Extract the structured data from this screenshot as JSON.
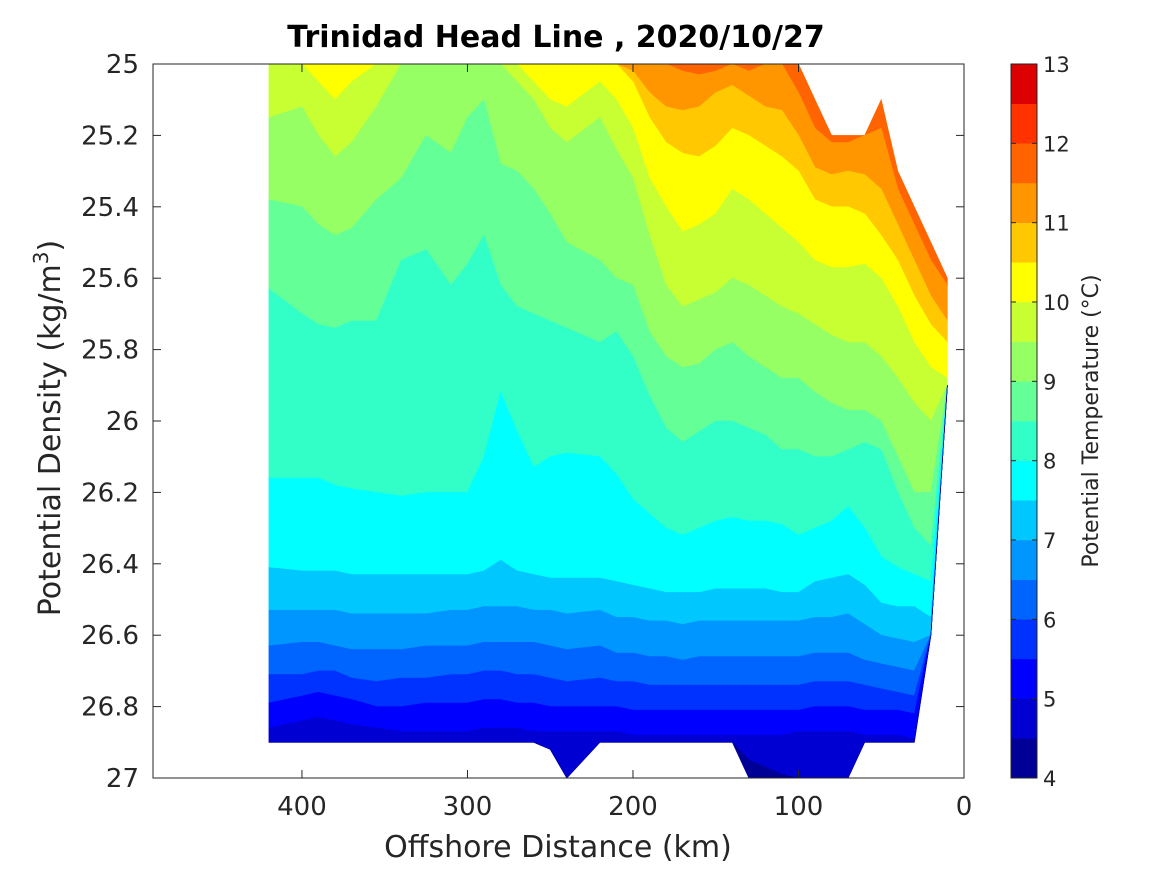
{
  "chart_data": {
    "type": "filled_contour",
    "title": "Trinidad Head Line , 2020/10/27",
    "xlabel": "Offshore Distance (km)",
    "ylabel": "Potential Density (kg/m³)",
    "ylabel_base": "Potential Density (kg/m",
    "ylabel_sup": "3",
    "ylabel_end": ")",
    "colorbar_label": "Potential Temperature (°C)",
    "x_axis": {
      "range": [
        490,
        0
      ],
      "reversed": true,
      "ticks": [
        400,
        300,
        200,
        100,
        0
      ],
      "tick_labels": [
        "400",
        "300",
        "200",
        "100",
        "0"
      ]
    },
    "y_axis": {
      "range": [
        25,
        27
      ],
      "reversed": true,
      "ticks": [
        25,
        25.2,
        25.4,
        25.6,
        25.8,
        26,
        26.2,
        26.4,
        26.6,
        26.8,
        27
      ],
      "tick_labels": [
        "25",
        "25.2",
        "25.4",
        "25.6",
        "25.8",
        "26",
        "26.2",
        "26.4",
        "26.6",
        "26.8",
        "27"
      ]
    },
    "colorbar": {
      "min": 4,
      "max": 13,
      "step": 0.5,
      "tick_values": [
        4,
        5,
        6,
        7,
        8,
        9,
        10,
        11,
        12,
        13
      ],
      "tick_labels": [
        "4",
        "5",
        "6",
        "7",
        "8",
        "9",
        "10",
        "11",
        "12",
        "13"
      ],
      "colors": [
        "#000096",
        "#0000d2",
        "#0000ff",
        "#0032ff",
        "#0064ff",
        "#0096ff",
        "#00c8ff",
        "#00ffff",
        "#32ffc8",
        "#64ff96",
        "#96ff64",
        "#c8ff32",
        "#ffff00",
        "#ffc800",
        "#ff9600",
        "#ff6400",
        "#ff3200",
        "#dc0000"
      ]
    },
    "grid": false,
    "distance_km": [
      420,
      400,
      390,
      380,
      370,
      355,
      340,
      325,
      310,
      300,
      290,
      280,
      270,
      260,
      250,
      240,
      220,
      210,
      200,
      190,
      180,
      170,
      160,
      150,
      140,
      130,
      120,
      110,
      100,
      90,
      80,
      70,
      60,
      50,
      40,
      30,
      20,
      10
    ],
    "bottom_density": [
      26.9,
      26.9,
      26.9,
      26.9,
      26.9,
      26.9,
      26.9,
      26.9,
      26.9,
      26.9,
      26.9,
      26.9,
      26.9,
      26.9,
      26.92,
      27.0,
      26.9,
      26.9,
      26.9,
      26.9,
      26.9,
      26.9,
      26.9,
      26.9,
      26.9,
      27.0,
      27.0,
      27.0,
      27.0,
      27.0,
      27.0,
      27.0,
      26.9,
      26.9,
      26.9,
      26.9,
      26.6,
      25.9
    ],
    "top_density": [
      25.0,
      25.0,
      25.0,
      25.0,
      25.0,
      25.0,
      25.0,
      25.0,
      25.0,
      25.0,
      25.0,
      25.0,
      25.0,
      25.0,
      25.0,
      25.0,
      25.0,
      25.0,
      25.0,
      25.0,
      25.0,
      25.0,
      25.0,
      25.0,
      25.0,
      25.0,
      25.0,
      25.0,
      25.0,
      25.1,
      25.2,
      25.2,
      25.2,
      25.1,
      25.3,
      25.4,
      25.5,
      25.6
    ],
    "isopycnal_depth_of_isotherms": [
      {
        "temperature": 11.5,
        "density": [
          25.0,
          25.0,
          25.0,
          25.0,
          25.0,
          25.0,
          25.0,
          25.0,
          25.0,
          25.0,
          25.0,
          25.0,
          25.0,
          25.0,
          25.0,
          25.0,
          25.0,
          25.0,
          25.0,
          25.0,
          25.0,
          25.02,
          25.03,
          25.02,
          25.0,
          25.02,
          25.0,
          25.0,
          25.08,
          25.18,
          25.22,
          25.22,
          25.15,
          25.18,
          25.35,
          25.45,
          25.55,
          25.62
        ]
      },
      {
        "temperature": 11.0,
        "density": [
          25.0,
          25.0,
          25.0,
          25.0,
          25.0,
          25.0,
          25.0,
          25.0,
          25.0,
          25.0,
          25.0,
          25.0,
          25.0,
          25.0,
          25.0,
          25.0,
          25.0,
          25.0,
          25.02,
          25.08,
          25.12,
          25.13,
          25.12,
          25.08,
          25.06,
          25.09,
          25.12,
          25.13,
          25.2,
          25.29,
          25.31,
          25.3,
          25.31,
          25.35,
          25.45,
          25.55,
          25.65,
          25.72
        ]
      },
      {
        "temperature": 10.5,
        "density": [
          25.0,
          25.0,
          25.0,
          25.0,
          25.0,
          25.0,
          25.0,
          25.0,
          25.0,
          25.0,
          25.0,
          25.0,
          25.0,
          25.0,
          25.0,
          25.0,
          25.0,
          25.0,
          25.05,
          25.15,
          25.22,
          25.25,
          25.26,
          25.23,
          25.18,
          25.2,
          25.23,
          25.26,
          25.3,
          25.38,
          25.4,
          25.4,
          25.42,
          25.48,
          25.55,
          25.65,
          25.73,
          25.78
        ]
      },
      {
        "temperature": 10.0,
        "density": [
          25.0,
          25.0,
          25.05,
          25.1,
          25.05,
          25.0,
          25.0,
          25.0,
          25.0,
          25.0,
          25.0,
          25.0,
          25.0,
          25.05,
          25.1,
          25.12,
          25.05,
          25.1,
          25.18,
          25.32,
          25.4,
          25.47,
          25.45,
          25.42,
          25.35,
          25.38,
          25.42,
          25.46,
          25.5,
          25.55,
          25.57,
          25.57,
          25.56,
          25.6,
          25.68,
          25.78,
          25.85,
          25.88
        ]
      },
      {
        "temperature": 9.5,
        "density": [
          25.15,
          25.12,
          25.2,
          25.26,
          25.22,
          25.12,
          25.0,
          25.0,
          25.0,
          25.0,
          25.0,
          25.0,
          25.05,
          25.1,
          25.18,
          25.22,
          25.15,
          25.24,
          25.32,
          25.48,
          25.62,
          25.68,
          25.66,
          25.64,
          25.6,
          25.62,
          25.65,
          25.68,
          25.7,
          25.73,
          25.76,
          25.78,
          25.78,
          25.82,
          25.88,
          25.95,
          26.0,
          26.0
        ]
      },
      {
        "temperature": 9.0,
        "density": [
          25.38,
          25.4,
          25.45,
          25.48,
          25.46,
          25.38,
          25.32,
          25.2,
          25.25,
          25.15,
          25.1,
          25.28,
          25.3,
          25.35,
          25.42,
          25.5,
          25.55,
          25.6,
          25.62,
          25.75,
          25.82,
          25.85,
          25.84,
          25.8,
          25.78,
          25.82,
          25.85,
          25.88,
          25.88,
          25.92,
          25.95,
          25.97,
          25.97,
          26.0,
          26.1,
          26.2,
          26.2,
          26.2
        ]
      },
      {
        "temperature": 8.5,
        "density": [
          25.63,
          25.7,
          25.73,
          25.74,
          25.72,
          25.72,
          25.55,
          25.52,
          25.62,
          25.56,
          25.48,
          25.62,
          25.68,
          25.7,
          25.72,
          25.74,
          25.78,
          25.75,
          25.82,
          25.93,
          26.02,
          26.06,
          26.03,
          26.0,
          26.0,
          26.02,
          26.04,
          26.08,
          26.08,
          26.1,
          26.1,
          26.08,
          26.06,
          26.08,
          26.2,
          26.3,
          26.35,
          26.35
        ]
      },
      {
        "temperature": 8.0,
        "density": [
          26.16,
          26.16,
          26.16,
          26.18,
          26.19,
          26.2,
          26.21,
          26.2,
          26.2,
          26.2,
          26.1,
          25.92,
          26.03,
          26.13,
          26.1,
          26.09,
          26.1,
          26.15,
          26.22,
          26.26,
          26.3,
          26.32,
          26.3,
          26.28,
          26.27,
          26.28,
          26.28,
          26.29,
          26.32,
          26.3,
          26.28,
          26.24,
          26.3,
          26.38,
          26.41,
          26.43,
          26.45,
          26.45
        ]
      },
      {
        "temperature": 7.5,
        "density": [
          26.41,
          26.42,
          26.42,
          26.42,
          26.43,
          26.43,
          26.43,
          26.43,
          26.43,
          26.43,
          26.42,
          26.39,
          26.42,
          26.43,
          26.44,
          26.44,
          26.44,
          26.45,
          26.46,
          26.47,
          26.48,
          26.48,
          26.48,
          26.47,
          26.47,
          26.47,
          26.47,
          26.48,
          26.48,
          26.45,
          26.44,
          26.43,
          26.46,
          26.51,
          26.52,
          26.52,
          26.55,
          26.58
        ]
      },
      {
        "temperature": 7.0,
        "density": [
          26.53,
          26.53,
          26.53,
          26.53,
          26.54,
          26.54,
          26.54,
          26.54,
          26.53,
          26.53,
          26.52,
          26.52,
          26.52,
          26.53,
          26.53,
          26.54,
          26.53,
          26.55,
          26.55,
          26.56,
          26.56,
          26.57,
          26.56,
          26.56,
          26.56,
          26.56,
          26.56,
          26.56,
          26.56,
          26.55,
          26.55,
          26.54,
          26.57,
          26.6,
          26.61,
          26.62,
          26.64,
          26.65
        ]
      },
      {
        "temperature": 6.5,
        "density": [
          26.63,
          26.62,
          26.62,
          26.63,
          26.64,
          26.64,
          26.64,
          26.63,
          26.63,
          26.63,
          26.62,
          26.62,
          26.62,
          26.62,
          26.63,
          26.64,
          26.63,
          26.65,
          26.65,
          26.66,
          26.66,
          26.67,
          26.66,
          26.66,
          26.66,
          26.66,
          26.66,
          26.66,
          26.66,
          26.65,
          26.65,
          26.65,
          26.67,
          26.68,
          26.69,
          26.7,
          26.72,
          26.75
        ]
      },
      {
        "temperature": 6.0,
        "density": [
          26.71,
          26.71,
          26.7,
          26.7,
          26.72,
          26.73,
          26.72,
          26.72,
          26.71,
          26.71,
          26.7,
          26.7,
          26.71,
          26.71,
          26.72,
          26.73,
          26.72,
          26.73,
          26.73,
          26.74,
          26.74,
          26.74,
          26.74,
          26.74,
          26.74,
          26.74,
          26.74,
          26.74,
          26.74,
          26.73,
          26.73,
          26.73,
          26.74,
          26.75,
          26.76,
          26.77,
          26.78,
          26.8
        ]
      },
      {
        "temperature": 5.5,
        "density": [
          26.79,
          26.77,
          26.76,
          26.77,
          26.78,
          26.8,
          26.8,
          26.79,
          26.79,
          26.79,
          26.78,
          26.78,
          26.79,
          26.79,
          26.8,
          26.8,
          26.8,
          26.8,
          26.81,
          26.81,
          26.81,
          26.81,
          26.81,
          26.81,
          26.81,
          26.81,
          26.81,
          26.81,
          26.81,
          26.8,
          26.8,
          26.8,
          26.81,
          26.81,
          26.81,
          26.82,
          26.83,
          26.84
        ]
      },
      {
        "temperature": 5.0,
        "density": [
          26.86,
          26.84,
          26.83,
          26.84,
          26.85,
          26.86,
          26.87,
          26.87,
          26.87,
          26.87,
          26.86,
          26.86,
          26.86,
          26.87,
          26.87,
          26.87,
          26.87,
          26.87,
          26.88,
          26.88,
          26.88,
          26.88,
          26.88,
          26.88,
          26.88,
          26.88,
          26.88,
          26.88,
          26.87,
          26.87,
          26.87,
          26.87,
          26.88,
          26.88,
          26.88,
          26.89,
          26.89,
          26.89
        ]
      },
      {
        "temperature": 4.5,
        "density": [
          26.9,
          26.9,
          26.9,
          26.9,
          26.9,
          26.9,
          26.9,
          26.9,
          26.9,
          26.9,
          26.9,
          26.9,
          26.9,
          26.9,
          26.92,
          27.0,
          26.9,
          26.9,
          26.9,
          26.9,
          26.9,
          26.9,
          26.9,
          26.9,
          26.9,
          26.95,
          26.97,
          26.99,
          27.0,
          27.0,
          27.0,
          27.0,
          26.9,
          26.9,
          26.9,
          26.9,
          26.9,
          26.9
        ]
      }
    ]
  }
}
